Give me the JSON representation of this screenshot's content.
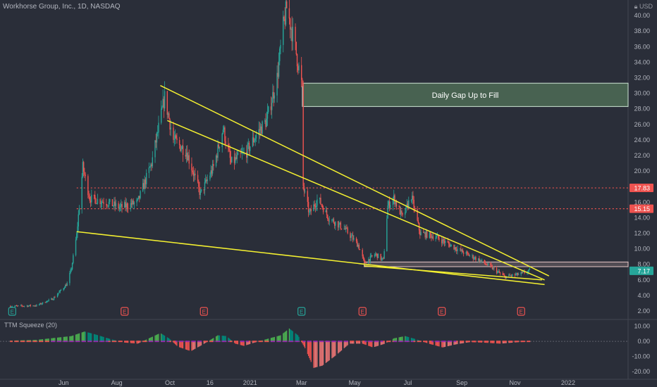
{
  "header": {
    "title": "Workhorse Group, Inc., 1D, NASDAQ",
    "currency": "USD"
  },
  "annotation": {
    "gap_label": "Daily Gap Up to Fill"
  },
  "colors": {
    "bg": "#2a2e39",
    "up": "#26a69a",
    "down": "#ef5350",
    "trend": "#f5f130",
    "gap_fill": "#4e6b56",
    "gap_border": "#cfe6d6"
  },
  "chart_data": [
    {
      "type": "candlestick",
      "ylim": [
        1.0,
        42.0
      ],
      "y_ticks": [
        "2.00",
        "4.00",
        "6.00",
        "8.00",
        "10.00",
        "12.00",
        "14.00",
        "16.00",
        "18.00",
        "20.00",
        "22.00",
        "24.00",
        "26.00",
        "28.00",
        "30.00",
        "32.00",
        "34.00",
        "36.00",
        "38.00",
        "40.00"
      ],
      "x_ticks": [
        "Jun",
        "Aug",
        "Oct",
        "16",
        "2021",
        "Mar",
        "May",
        "Jul",
        "Sep",
        "Nov",
        "2022"
      ],
      "price_labels": [
        {
          "label": "17.83",
          "value": 17.83,
          "color": "#ef5350"
        },
        {
          "label": "15.15",
          "value": 15.15,
          "color": "#ef5350"
        },
        {
          "label": "7.17",
          "value": 7.17,
          "color": "#26a69a"
        }
      ],
      "close_path": [
        [
          "2020-04-01",
          2.6
        ],
        [
          "2020-05-01",
          2.7
        ],
        [
          "2020-05-20",
          3.6
        ],
        [
          "2020-06-05",
          5.5
        ],
        [
          "2020-06-10",
          7.5
        ],
        [
          "2020-06-16",
          11.8
        ],
        [
          "2020-06-23",
          20.5
        ],
        [
          "2020-07-01",
          16.5
        ],
        [
          "2020-07-20",
          16.0
        ],
        [
          "2020-08-05",
          15.3
        ],
        [
          "2020-08-25",
          16.0
        ],
        [
          "2020-09-10",
          21.0
        ],
        [
          "2020-09-25",
          29.5
        ],
        [
          "2020-10-05",
          24.0
        ],
        [
          "2020-10-20",
          22.5
        ],
        [
          "2020-11-05",
          17.0
        ],
        [
          "2020-11-20",
          20.5
        ],
        [
          "2020-12-01",
          25.5
        ],
        [
          "2020-12-10",
          21.0
        ],
        [
          "2020-12-28",
          22.5
        ],
        [
          "2021-01-10",
          25.0
        ],
        [
          "2021-01-20",
          26.5
        ],
        [
          "2021-02-01",
          32.0
        ],
        [
          "2021-02-08",
          38.5
        ],
        [
          "2021-02-12",
          41.0
        ],
        [
          "2021-02-20",
          37.0
        ],
        [
          "2021-02-28",
          32.0
        ],
        [
          "2021-03-02",
          30.5
        ],
        [
          "2021-03-03",
          18.0
        ],
        [
          "2021-03-10",
          14.5
        ],
        [
          "2021-03-20",
          16.5
        ],
        [
          "2021-04-01",
          14.0
        ],
        [
          "2021-04-20",
          12.5
        ],
        [
          "2021-05-05",
          10.5
        ],
        [
          "2021-05-12",
          8.2
        ],
        [
          "2021-05-25",
          9.3
        ],
        [
          "2021-06-03",
          8.5
        ],
        [
          "2021-06-08",
          15.5
        ],
        [
          "2021-06-15",
          16.5
        ],
        [
          "2021-06-25",
          14.0
        ],
        [
          "2021-07-05",
          16.8
        ],
        [
          "2021-07-15",
          12.0
        ],
        [
          "2021-08-01",
          11.6
        ],
        [
          "2021-08-20",
          10.4
        ],
        [
          "2021-09-05",
          9.4
        ],
        [
          "2021-09-20",
          8.6
        ],
        [
          "2021-10-05",
          7.6
        ],
        [
          "2021-10-20",
          6.4
        ],
        [
          "2021-11-05",
          6.7
        ],
        [
          "2021-11-18",
          7.17
        ]
      ],
      "trendlines": [
        {
          "from": [
            "2020-09-20",
            31.0
          ],
          "to": [
            "2021-12-10",
            6.5
          ]
        },
        {
          "from": [
            "2020-09-28",
            26.5
          ],
          "to": [
            "2021-12-05",
            6.0
          ]
        },
        {
          "from": [
            "2020-06-16",
            12.2
          ],
          "to": [
            "2021-12-05",
            5.4
          ]
        },
        {
          "from": [
            "2021-05-12",
            7.8
          ],
          "to": [
            "2021-12-02",
            6.0
          ]
        }
      ],
      "horizontal_levels": [
        {
          "value": 17.83,
          "from": "2020-06-16",
          "style": "dotted",
          "color": "#ef5350"
        },
        {
          "value": 15.15,
          "from": "2020-06-16",
          "style": "dotted",
          "color": "#ef5350"
        }
      ],
      "zones": [
        {
          "from": "2021-03-02",
          "y1": 28.3,
          "y2": 31.3,
          "color": "#4e6b56",
          "label": "Daily Gap Up to Fill"
        },
        {
          "from": "2021-05-12",
          "y1": 7.7,
          "y2": 8.3,
          "color": "#c8a7a7",
          "label": ""
        }
      ],
      "earnings_markers": [
        {
          "date": "2020-04-03",
          "color": "#26a69a"
        },
        {
          "date": "2020-08-10",
          "color": "#ef5350"
        },
        {
          "date": "2020-11-09",
          "color": "#ef5350"
        },
        {
          "date": "2021-03-01",
          "color": "#26a69a"
        },
        {
          "date": "2021-05-10",
          "color": "#ef5350"
        },
        {
          "date": "2021-08-09",
          "color": "#ef5350"
        },
        {
          "date": "2021-11-08",
          "color": "#ef5350"
        }
      ],
      "earnings_glyph": "E"
    },
    {
      "type": "histogram",
      "title": "TTM Squeeze (20)",
      "ylim": [
        -25,
        14
      ],
      "y_ticks": [
        "10.00",
        "0.00",
        "-10.00",
        "-20.00"
      ],
      "y_tick_values": [
        10,
        0,
        -10,
        -20
      ],
      "series": [
        {
          "name": "",
          "points": [
            [
              "2020-04-01",
              0.5
            ],
            [
              "2020-05-01",
              1.0
            ],
            [
              "2020-06-10",
              3.5
            ],
            [
              "2020-06-25",
              6.5
            ],
            [
              "2020-07-05",
              5.0
            ],
            [
              "2020-07-25",
              1.5
            ],
            [
              "2020-08-10",
              -0.8
            ],
            [
              "2020-08-25",
              -1.5
            ],
            [
              "2020-09-05",
              1.5
            ],
            [
              "2020-09-20",
              5.5
            ],
            [
              "2020-09-30",
              2.0
            ],
            [
              "2020-10-10",
              -3.5
            ],
            [
              "2020-10-25",
              -6.5
            ],
            [
              "2020-11-08",
              -2.0
            ],
            [
              "2020-11-25",
              4.0
            ],
            [
              "2020-12-05",
              3.5
            ],
            [
              "2020-12-15",
              -1.5
            ],
            [
              "2020-12-25",
              -3.0
            ],
            [
              "2021-01-05",
              -1.0
            ],
            [
              "2021-01-20",
              1.5
            ],
            [
              "2021-02-05",
              4.0
            ],
            [
              "2021-02-15",
              8.5
            ],
            [
              "2021-02-25",
              4.0
            ],
            [
              "2021-03-05",
              -4.5
            ],
            [
              "2021-03-15",
              -17.5
            ],
            [
              "2021-03-25",
              -16.0
            ],
            [
              "2021-04-10",
              -9.0
            ],
            [
              "2021-04-25",
              -1.5
            ],
            [
              "2021-05-10",
              -1.5
            ],
            [
              "2021-05-22",
              -4.0
            ],
            [
              "2021-06-05",
              -1.5
            ],
            [
              "2021-06-15",
              2.0
            ],
            [
              "2021-06-28",
              3.5
            ],
            [
              "2021-07-10",
              1.5
            ],
            [
              "2021-07-25",
              -1.5
            ],
            [
              "2021-08-10",
              -4.0
            ],
            [
              "2021-08-25",
              -2.0
            ],
            [
              "2021-09-10",
              -0.5
            ],
            [
              "2021-09-25",
              -0.8
            ],
            [
              "2021-10-15",
              -1.5
            ],
            [
              "2021-11-05",
              -0.5
            ],
            [
              "2021-11-18",
              -0.3
            ]
          ]
        }
      ]
    }
  ]
}
